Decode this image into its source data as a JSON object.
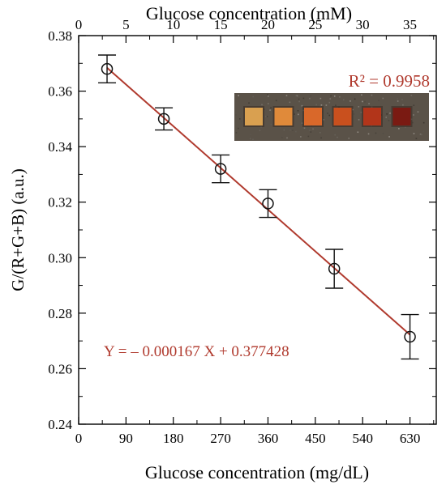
{
  "chart_data": {
    "type": "scatter",
    "xlabel": "Glucose concentration (mg/dL)",
    "x2label": "Glucose concentration (mM)",
    "ylabel": "G/(R+G+B) (a.u.)",
    "xlim": [
      0,
      680
    ],
    "x2lim": [
      0,
      37.78
    ],
    "ylim": [
      0.24,
      0.38
    ],
    "xticks": [
      0,
      90,
      180,
      270,
      360,
      450,
      540,
      630
    ],
    "x2ticks": [
      0,
      5,
      10,
      15,
      20,
      25,
      30,
      35
    ],
    "yticks": [
      0.24,
      0.26,
      0.28,
      0.3,
      0.32,
      0.34,
      0.36,
      0.38
    ],
    "ytick_labels": [
      "0.24",
      "0.26",
      "0.28",
      "0.30",
      "0.32",
      "0.34",
      "0.36",
      "0.38"
    ],
    "points": [
      {
        "x": 54,
        "y": 0.368,
        "err": 0.005
      },
      {
        "x": 162,
        "y": 0.35,
        "err": 0.004
      },
      {
        "x": 270,
        "y": 0.332,
        "err": 0.005
      },
      {
        "x": 360,
        "y": 0.3195,
        "err": 0.005
      },
      {
        "x": 486,
        "y": 0.296,
        "err": 0.007
      },
      {
        "x": 630,
        "y": 0.2715,
        "err": 0.008
      }
    ],
    "fit": {
      "slope": -0.000167,
      "intercept": 0.377428,
      "x_range": [
        54,
        630
      ]
    },
    "equation_label": "Y = – 0.000167 X + 0.377428",
    "r2_label": "R² = 0.9958",
    "grid": false,
    "colors": {
      "fit_line": "#b03a2e",
      "annotation": "#b03a2e",
      "markers": "#111111",
      "inset_background": "#5a5248",
      "swatches": [
        "#d9a050",
        "#e08a3a",
        "#d9682a",
        "#c9501e",
        "#b2351a",
        "#7a1a12"
      ]
    },
    "inset_description_icon": "colorimetric-test-strip-photo"
  }
}
